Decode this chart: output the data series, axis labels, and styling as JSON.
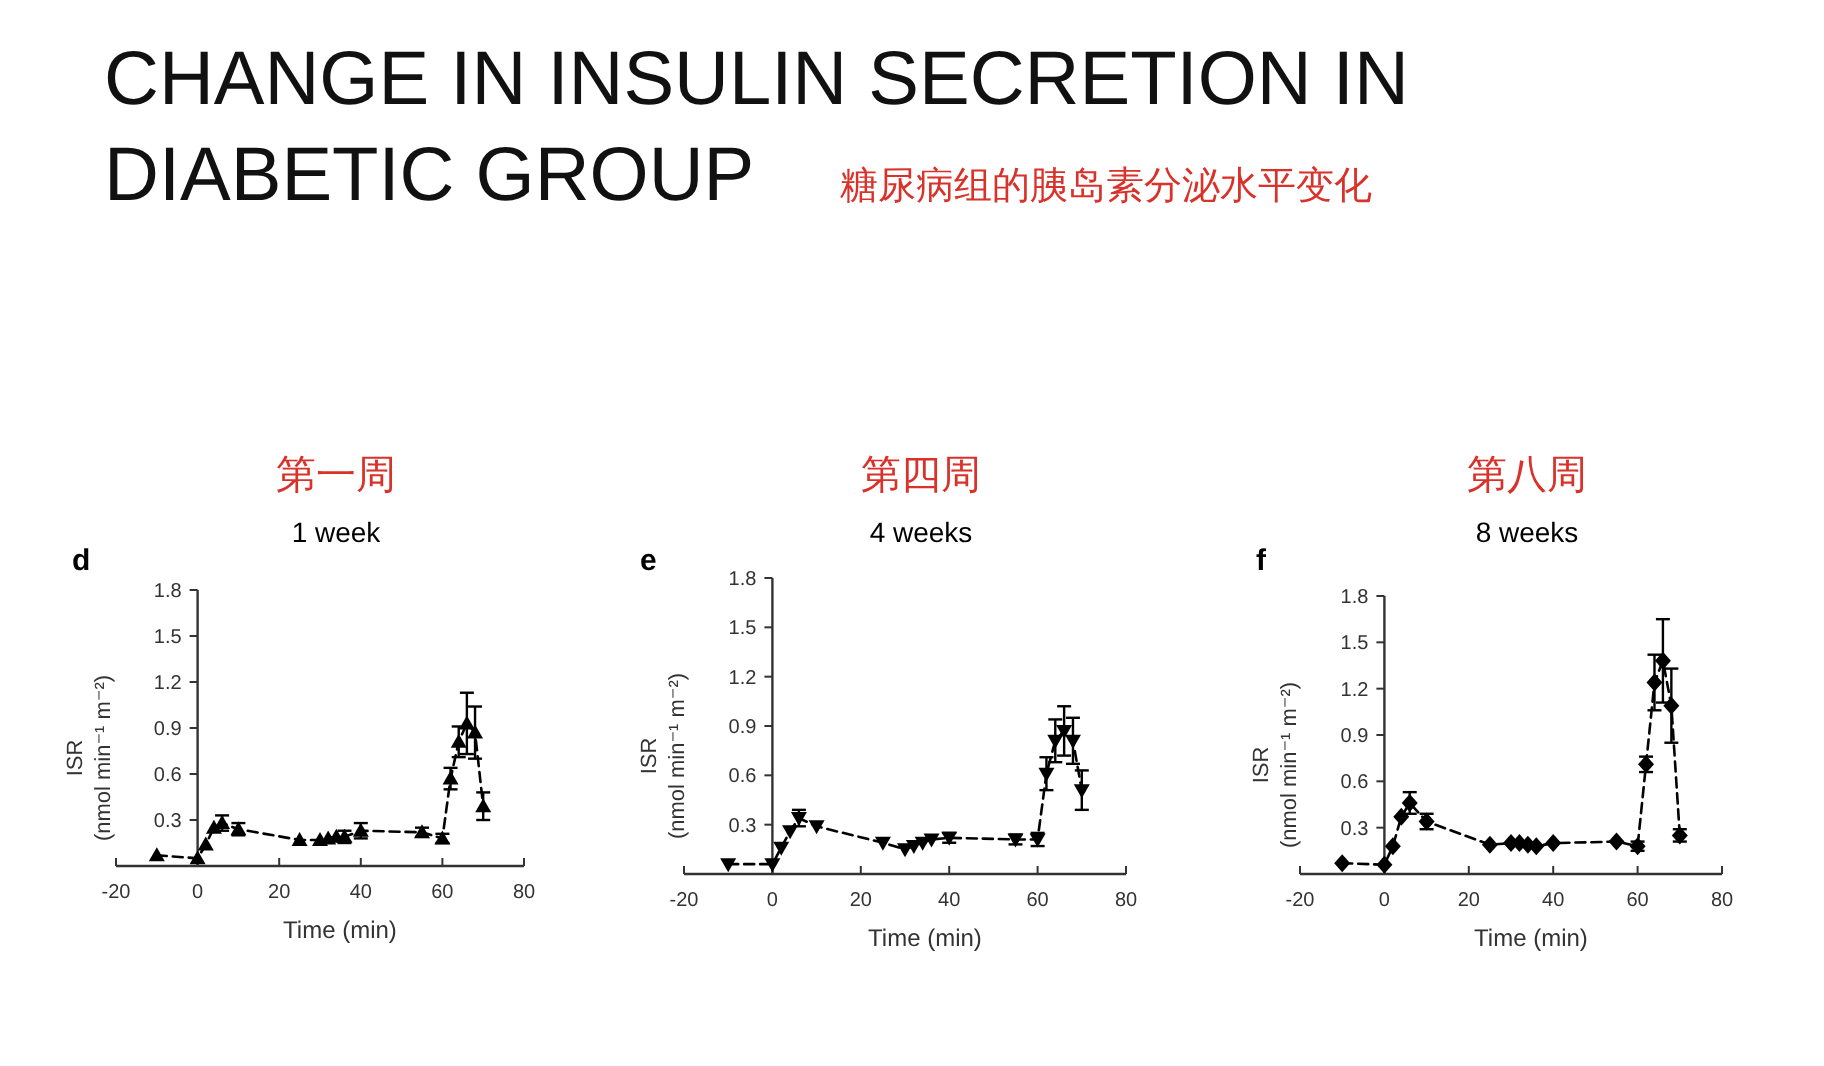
{
  "chart_data": [
    {
      "type": "line",
      "title": "第一周",
      "subtitle": "1 week",
      "annotations": [
        "CHANGE IN INSULIN SECRETION IN DIABETIC GROUP",
        "糖尿病组的胰岛素分泌水平变化",
        "d"
      ],
      "xlabel": "Time (min)",
      "ylabel": "ISR\n(nmol min⁻¹ m⁻²)",
      "x": [
        -10,
        0,
        2,
        4,
        6,
        10,
        25,
        30,
        32,
        34,
        36,
        40,
        55,
        60,
        62,
        64,
        66,
        68,
        70
      ],
      "series": [
        {
          "color": "#000000",
          "values": [
            0.07,
            0.05,
            0.14,
            0.25,
            0.28,
            0.24,
            0.17,
            0.17,
            0.18,
            0.19,
            0.19,
            0.23,
            0.22,
            0.18,
            0.57,
            0.81,
            0.93,
            0.87,
            0.39
          ],
          "errors": [
            null,
            null,
            null,
            null,
            0.05,
            0.04,
            null,
            null,
            null,
            null,
            0.04,
            0.05,
            0.03,
            0.03,
            0.07,
            0.1,
            0.2,
            0.17,
            0.09
          ]
        }
      ],
      "xlim": [
        -20,
        80
      ],
      "xticks": [
        -20,
        0,
        20,
        40,
        60,
        80
      ],
      "ylim": [
        0,
        1.8
      ],
      "yticks": [
        0.3,
        0.6,
        0.9,
        1.2,
        1.5,
        1.8
      ],
      "marker": "triangle",
      "line_style": "dashed"
    },
    {
      "type": "line",
      "title": "第四周",
      "subtitle": "4 weeks",
      "annotations": [
        "e"
      ],
      "xlabel": "Time (min)",
      "ylabel": "ISR\n(nmol min⁻¹ m⁻²)",
      "x": [
        -10,
        0,
        2,
        4,
        6,
        10,
        25,
        30,
        32,
        34,
        36,
        40,
        55,
        60,
        62,
        64,
        66,
        68,
        70
      ],
      "series": [
        {
          "color": "#000000",
          "values": [
            0.06,
            0.06,
            0.16,
            0.26,
            0.34,
            0.29,
            0.19,
            0.15,
            0.17,
            0.19,
            0.21,
            0.22,
            0.21,
            0.21,
            0.61,
            0.81,
            0.87,
            0.81,
            0.51
          ],
          "errors": [
            null,
            null,
            null,
            null,
            0.05,
            null,
            null,
            null,
            null,
            null,
            null,
            0.03,
            0.03,
            0.04,
            0.1,
            0.13,
            0.15,
            0.14,
            0.12
          ]
        }
      ],
      "xlim": [
        -20,
        80
      ],
      "xticks": [
        -20,
        0,
        20,
        40,
        60,
        80
      ],
      "ylim": [
        0,
        1.8
      ],
      "yticks": [
        0.3,
        0.6,
        0.9,
        1.2,
        1.5,
        1.8
      ],
      "marker": "triangle-down",
      "line_style": "dashed"
    },
    {
      "type": "line",
      "title": "第八周",
      "subtitle": "8 weeks",
      "annotations": [
        "f"
      ],
      "xlabel": "Time (min)",
      "ylabel": "ISR\n(nmol min⁻¹ m⁻²)",
      "x": [
        -10,
        0,
        2,
        4,
        6,
        10,
        25,
        30,
        32,
        34,
        36,
        40,
        55,
        60,
        62,
        64,
        66,
        68,
        70
      ],
      "series": [
        {
          "color": "#000000",
          "values": [
            0.07,
            0.06,
            0.18,
            0.37,
            0.46,
            0.34,
            0.19,
            0.2,
            0.2,
            0.19,
            0.18,
            0.2,
            0.21,
            0.18,
            0.71,
            1.24,
            1.38,
            1.09,
            0.25
          ],
          "errors": [
            null,
            null,
            null,
            null,
            0.07,
            0.05,
            null,
            null,
            null,
            null,
            null,
            null,
            null,
            0.03,
            0.05,
            0.18,
            0.27,
            0.24,
            0.04
          ]
        }
      ],
      "xlim": [
        -20,
        80
      ],
      "xticks": [
        -20,
        0,
        20,
        40,
        60,
        80
      ],
      "ylim": [
        0,
        1.8
      ],
      "yticks": [
        0.3,
        0.6,
        0.9,
        1.2,
        1.5,
        1.8
      ],
      "marker": "diamond",
      "line_style": "dashed"
    }
  ]
}
